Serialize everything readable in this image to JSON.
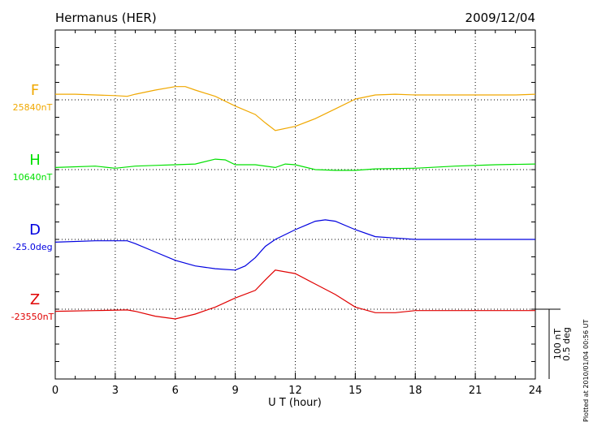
{
  "chart_data": {
    "type": "line",
    "title": "Hermanus (HER)",
    "date": "2009/12/04",
    "x_label": "U T (hour)",
    "footer": "Plotted at 2010/01/04 00:56 UT",
    "xlim": [
      0,
      24
    ],
    "xticks": [
      0,
      3,
      6,
      9,
      12,
      15,
      18,
      21,
      24
    ],
    "grid": true,
    "scale_bar": [
      {
        "value": 100,
        "unit": "nT",
        "label": "100 nT"
      },
      {
        "value": 0.5,
        "unit": "deg",
        "label": "0.5 deg"
      }
    ],
    "series": [
      {
        "name": "F",
        "baseline_label": "25840nT",
        "unit": "nT",
        "color": "#f0a800",
        "x": [
          0,
          1,
          2,
          3,
          3.6,
          4,
          5,
          6,
          6.5,
          7,
          8,
          9,
          10,
          10.5,
          11,
          12,
          13,
          14,
          15,
          16,
          17,
          18,
          19,
          20,
          21,
          22,
          23,
          24
        ],
        "values": [
          8,
          8,
          7,
          6,
          5,
          8,
          14,
          19,
          19,
          14,
          5,
          -9,
          -21,
          -33,
          -44,
          -38,
          -27,
          -13,
          1,
          7,
          8,
          7,
          7,
          7,
          7,
          7,
          7,
          8
        ]
      },
      {
        "name": "H",
        "baseline_label": "10640nT",
        "unit": "nT",
        "color": "#00e000",
        "x": [
          0,
          2,
          3,
          4,
          5,
          6,
          7,
          8,
          8.5,
          9,
          10,
          11,
          11.5,
          12,
          13,
          14,
          15,
          16,
          18,
          20,
          22,
          24
        ],
        "values": [
          3,
          5,
          2,
          5,
          6,
          7,
          8,
          15,
          14,
          7,
          7,
          3,
          8,
          7,
          0,
          -1,
          -1,
          1,
          2,
          5,
          7,
          8
        ]
      },
      {
        "name": "D",
        "baseline_label": "-25.0deg",
        "unit": "deg",
        "color": "#0000e0",
        "x": [
          0,
          2,
          3.6,
          4,
          5,
          6,
          7,
          8,
          9,
          9.5,
          10,
          10.5,
          11,
          12,
          13,
          13.5,
          14,
          15,
          16,
          17,
          18,
          24
        ],
        "values": [
          -0.02,
          -0.01,
          -0.01,
          -0.03,
          -0.09,
          -0.15,
          -0.19,
          -0.21,
          -0.22,
          -0.19,
          -0.13,
          -0.05,
          0,
          0.07,
          0.13,
          0.14,
          0.13,
          0.07,
          0.02,
          0.01,
          0,
          0
        ]
      },
      {
        "name": "Z",
        "baseline_label": "-23550nT",
        "unit": "nT",
        "color": "#e00000",
        "x": [
          0,
          2,
          3.6,
          4,
          5,
          6,
          7,
          8,
          9,
          10,
          10.5,
          11,
          12,
          13,
          14,
          15,
          16,
          17,
          18,
          20,
          24
        ],
        "values": [
          -3,
          -2,
          -1,
          -3,
          -10,
          -14,
          -7,
          3,
          16,
          27,
          42,
          56,
          51,
          36,
          21,
          3,
          -5,
          -5,
          -2,
          -2,
          -2
        ]
      }
    ]
  }
}
